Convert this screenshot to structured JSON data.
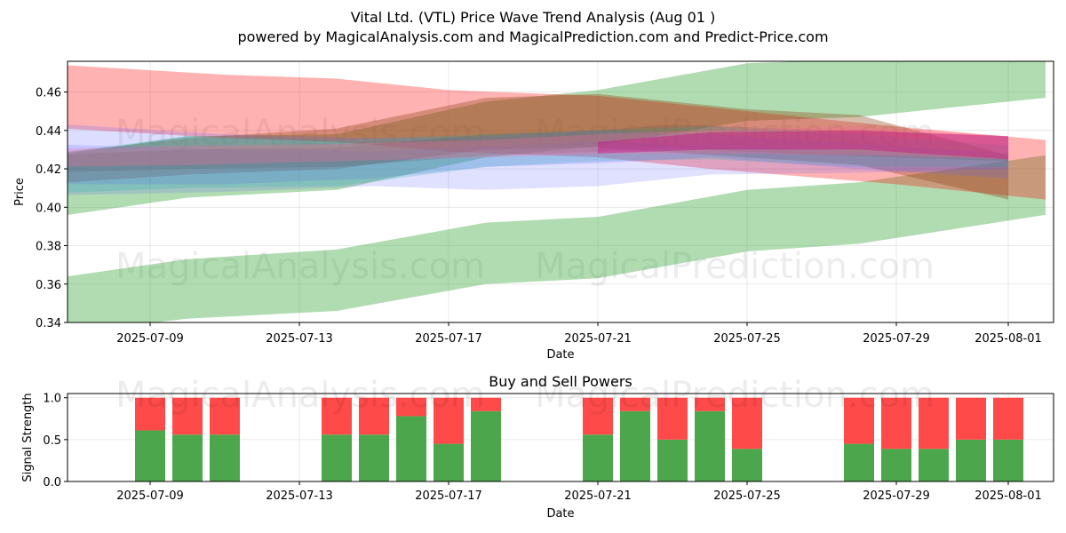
{
  "header": {
    "title": "Vital Ltd. (VTL) Price Wave Trend Analysis (Aug 01 )",
    "subtitle": "powered by MagicalAnalysis.com and MagicalPrediction.com and Predict-Price.com"
  },
  "watermarks": [
    "MagicalAnalysis.com",
    "MagicalPrediction.com"
  ],
  "chart_data": [
    {
      "type": "area",
      "xlabel": "Date",
      "ylabel": "Price",
      "ylim": [
        0.34,
        0.476
      ],
      "xlim": [
        "2025-07-05",
        "2025-08-02"
      ],
      "grid": true,
      "x_ticks": [
        "2025-07-09",
        "2025-07-13",
        "2025-07-17",
        "2025-07-21",
        "2025-07-25",
        "2025-07-29",
        "2025-08-01"
      ],
      "y_ticks": [
        0.34,
        0.36,
        0.38,
        0.4,
        0.42,
        0.44,
        0.46
      ],
      "bands": [
        {
          "color": "#2ca02c",
          "opacity": 0.37,
          "x": [
            "2025-07-05",
            "2025-07-10",
            "2025-07-14",
            "2025-07-18",
            "2025-07-21",
            "2025-07-25",
            "2025-07-28",
            "2025-08-02"
          ],
          "upper": [
            0.423,
            0.437,
            0.438,
            0.455,
            0.461,
            0.475,
            0.477,
            0.477
          ],
          "lower": [
            0.391,
            0.405,
            0.409,
            0.426,
            0.432,
            0.445,
            0.447,
            0.457
          ]
        },
        {
          "color": "#2ca02c",
          "opacity": 0.37,
          "x": [
            "2025-07-05",
            "2025-07-10",
            "2025-07-14",
            "2025-07-18",
            "2025-07-21",
            "2025-07-25",
            "2025-07-28",
            "2025-08-02"
          ],
          "upper": [
            0.359,
            0.373,
            0.378,
            0.392,
            0.395,
            0.409,
            0.413,
            0.427
          ],
          "lower": [
            0.331,
            0.342,
            0.346,
            0.36,
            0.363,
            0.377,
            0.381,
            0.396
          ]
        },
        {
          "color": "#ff0000",
          "opacity": 0.3,
          "x": [
            "2025-07-05",
            "2025-07-11",
            "2025-07-14",
            "2025-07-17",
            "2025-07-21",
            "2025-07-24",
            "2025-07-29",
            "2025-08-02"
          ],
          "upper": [
            0.476,
            0.469,
            0.467,
            0.461,
            0.458,
            0.452,
            0.442,
            0.435
          ],
          "lower": [
            0.443,
            0.436,
            0.434,
            0.429,
            0.426,
            0.42,
            0.412,
            0.404
          ]
        },
        {
          "color": "#8b4513",
          "opacity": 0.35,
          "x": [
            "2025-07-06",
            "2025-07-10",
            "2025-07-14",
            "2025-07-18",
            "2025-07-21",
            "2025-07-25",
            "2025-07-28",
            "2025-08-01"
          ],
          "upper": [
            0.427,
            0.436,
            0.441,
            0.457,
            0.459,
            0.451,
            0.448,
            0.427
          ],
          "lower": [
            0.412,
            0.417,
            0.42,
            0.43,
            0.431,
            0.426,
            0.422,
            0.404
          ]
        },
        {
          "color": "#6666ff",
          "opacity": 0.22,
          "x": [
            "2025-07-06",
            "2025-07-11",
            "2025-07-15",
            "2025-07-18",
            "2025-07-21",
            "2025-07-24",
            "2025-07-28",
            "2025-08-01"
          ],
          "upper": [
            0.444,
            0.438,
            0.436,
            0.437,
            0.44,
            0.438,
            0.433,
            0.428
          ],
          "lower": [
            0.412,
            0.412,
            0.415,
            0.421,
            0.423,
            0.426,
            0.42,
            0.415
          ]
        },
        {
          "color": "#6666ff",
          "opacity": 0.2,
          "x": [
            "2025-07-06",
            "2025-07-11",
            "2025-07-15",
            "2025-07-18",
            "2025-07-21",
            "2025-07-24",
            "2025-07-28",
            "2025-08-01"
          ],
          "upper": [
            0.433,
            0.43,
            0.429,
            0.432,
            0.434,
            0.432,
            0.429,
            0.425
          ],
          "lower": [
            0.406,
            0.408,
            0.411,
            0.409,
            0.411,
            0.417,
            0.418,
            0.42
          ]
        },
        {
          "color": "#20b2aa",
          "opacity": 0.22,
          "x": [
            "2025-07-06",
            "2025-07-10",
            "2025-07-14",
            "2025-07-18",
            "2025-07-21",
            "2025-07-24",
            "2025-07-28",
            "2025-08-01"
          ],
          "upper": [
            0.427,
            0.437,
            0.435,
            0.438,
            0.44,
            0.442,
            0.438,
            0.432
          ],
          "lower": [
            0.407,
            0.41,
            0.411,
            0.421,
            0.424,
            0.425,
            0.421,
            0.421
          ]
        },
        {
          "color": "#555555",
          "opacity": 0.2,
          "x": [
            "2025-07-06",
            "2025-07-10",
            "2025-07-14",
            "2025-07-18",
            "2025-07-21",
            "2025-07-23",
            "2025-07-26",
            "2025-08-01"
          ],
          "upper": [
            0.427,
            0.43,
            0.431,
            0.438,
            0.44,
            0.443,
            0.441,
            0.437
          ],
          "lower": [
            0.418,
            0.42,
            0.421,
            0.427,
            0.429,
            0.431,
            0.428,
            0.424
          ]
        },
        {
          "color": "#ff6699",
          "opacity": 0.3,
          "x": [
            "2025-07-06",
            "2025-07-10",
            "2025-07-14",
            "2025-07-18",
            "2025-07-21",
            "2025-07-25",
            "2025-07-28",
            "2025-08-01"
          ],
          "upper": [
            0.43,
            0.432,
            0.433,
            0.435,
            0.438,
            0.441,
            0.442,
            0.437
          ],
          "lower": [
            0.421,
            0.422,
            0.424,
            0.426,
            0.428,
            0.428,
            0.427,
            0.425
          ]
        },
        {
          "color": "#c71585",
          "opacity": 0.45,
          "x": [
            "2025-07-21",
            "2025-07-24",
            "2025-07-28",
            "2025-08-01"
          ],
          "upper": [
            0.434,
            0.439,
            0.44,
            0.437
          ],
          "lower": [
            0.428,
            0.43,
            0.43,
            0.425
          ]
        }
      ]
    },
    {
      "type": "bar",
      "title": "Buy and Sell Powers",
      "xlabel": "Date",
      "ylabel": "Signal Strength",
      "ylim": [
        0,
        1.05
      ],
      "xlim": [
        "2025-07-05",
        "2025-08-02"
      ],
      "grid": true,
      "x_ticks": [
        "2025-07-09",
        "2025-07-13",
        "2025-07-17",
        "2025-07-21",
        "2025-07-25",
        "2025-07-29",
        "2025-08-01"
      ],
      "y_ticks": [
        "0.0",
        "0.5",
        "1.0"
      ],
      "x": [
        "2025-07-09",
        "2025-07-10",
        "2025-07-11",
        "2025-07-14",
        "2025-07-15",
        "2025-07-16",
        "2025-07-17",
        "2025-07-18",
        "2025-07-21",
        "2025-07-22",
        "2025-07-23",
        "2025-07-24",
        "2025-07-25",
        "2025-07-28",
        "2025-07-29",
        "2025-07-30",
        "2025-07-31",
        "2025-08-01"
      ],
      "series": [
        {
          "name": "Buy",
          "color": "#4ca64c",
          "values": [
            0.61,
            0.56,
            0.56,
            0.56,
            0.56,
            0.78,
            0.45,
            0.84,
            0.56,
            0.84,
            0.5,
            0.84,
            0.39,
            0.45,
            0.39,
            0.39,
            0.5,
            0.5
          ]
        },
        {
          "name": "Sell",
          "color": "#ff4a4a",
          "values": [
            0.39,
            0.44,
            0.44,
            0.44,
            0.44,
            0.22,
            0.55,
            0.16,
            0.44,
            0.16,
            0.5,
            0.16,
            0.61,
            0.55,
            0.61,
            0.61,
            0.5,
            0.5
          ]
        }
      ]
    }
  ]
}
